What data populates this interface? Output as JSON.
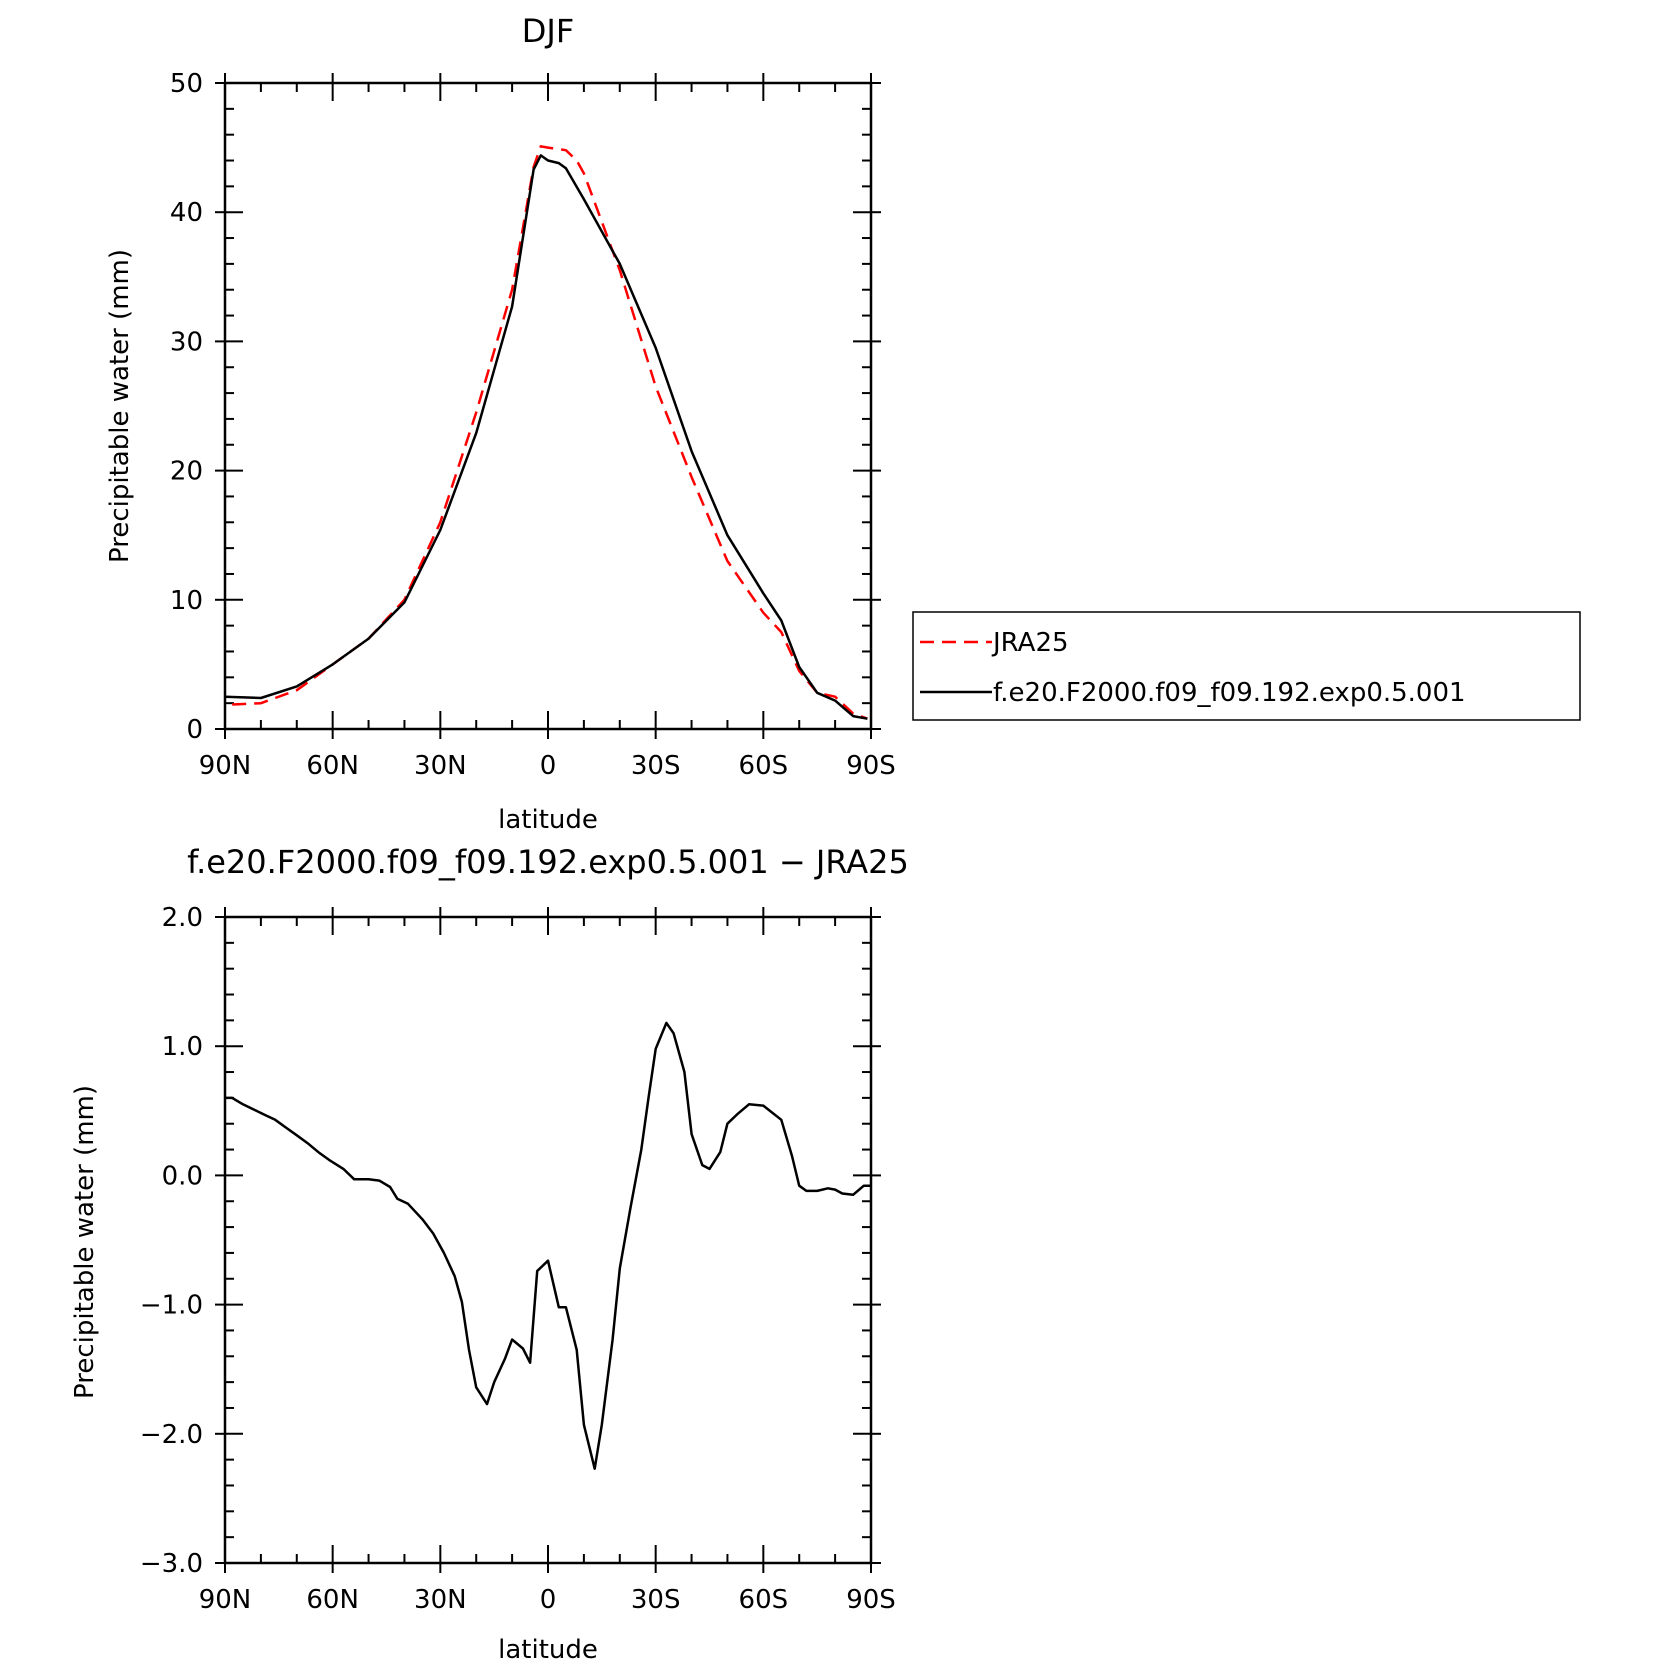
{
  "chart_data": [
    {
      "type": "line",
      "title": "DJF",
      "xlabel": "latitude",
      "ylabel": "Precipitable water (mm)",
      "xlim": [
        90,
        -90
      ],
      "ylim": [
        0,
        50
      ],
      "x_ticks": [
        90,
        60,
        30,
        0,
        -30,
        -60,
        -90
      ],
      "x_tick_labels": [
        "90N",
        "60N",
        "30N",
        "0",
        "30S",
        "60S",
        "90S"
      ],
      "y_ticks": [
        0,
        10,
        20,
        30,
        40,
        50
      ],
      "y_tick_labels": [
        "0",
        "10",
        "20",
        "30",
        "40",
        "50"
      ],
      "legend_position": "right",
      "series": [
        {
          "name": "JRA25",
          "color": "#ff0000",
          "style": "dashed",
          "x": [
            88,
            80,
            70,
            60,
            50,
            40,
            30,
            20,
            10,
            4,
            2,
            0,
            -5,
            -8,
            -10,
            -20,
            -30,
            -40,
            -50,
            -60,
            -65,
            -70,
            -75,
            -80,
            -85,
            -89
          ],
          "y": [
            1.9,
            2.0,
            3.0,
            5.0,
            7.0,
            10.0,
            16.0,
            24.5,
            34.0,
            43.5,
            45.1,
            45.0,
            44.8,
            44.0,
            43.0,
            35.5,
            26.5,
            19.5,
            13.0,
            9.0,
            7.5,
            4.5,
            2.8,
            2.5,
            1.2,
            0.8
          ]
        },
        {
          "name": "f.e20.F2000.f09_f09.192.exp0.5.001",
          "color": "#000000",
          "style": "solid",
          "x": [
            90,
            80,
            70,
            60,
            50,
            40,
            30,
            20,
            10,
            4,
            2,
            0,
            -3,
            -5,
            -10,
            -20,
            -30,
            -40,
            -50,
            -60,
            -65,
            -70,
            -75,
            -80,
            -85,
            -89
          ],
          "y": [
            2.5,
            2.4,
            3.3,
            5.0,
            7.0,
            9.8,
            15.4,
            22.9,
            32.7,
            43.3,
            44.4,
            44.0,
            43.8,
            43.4,
            41.0,
            36.0,
            29.5,
            21.5,
            15.0,
            10.5,
            8.4,
            4.8,
            2.8,
            2.2,
            1.0,
            0.8
          ]
        }
      ]
    },
    {
      "type": "line",
      "title": "f.e20.F2000.f09_f09.192.exp0.5.001 − JRA25",
      "xlabel": "latitude",
      "ylabel": "Precipitable water (mm)",
      "xlim": [
        90,
        -90
      ],
      "ylim": [
        -3.0,
        2.0
      ],
      "x_ticks": [
        90,
        60,
        30,
        0,
        -30,
        -60,
        -90
      ],
      "x_tick_labels": [
        "90N",
        "60N",
        "30N",
        "0",
        "30S",
        "60S",
        "90S"
      ],
      "y_ticks": [
        -3.0,
        -2.0,
        -1.0,
        0.0,
        1.0,
        2.0
      ],
      "y_tick_labels": [
        "−3.0",
        "−2.0",
        "−1.0",
        "0.0",
        "1.0",
        "2.0"
      ],
      "series": [
        {
          "color": "#000000",
          "style": "solid",
          "x": [
            90,
            88,
            85,
            82,
            79,
            76,
            73,
            70,
            67,
            64,
            61,
            57,
            54,
            50,
            47,
            44,
            42,
            39,
            35,
            32,
            29,
            26,
            24,
            22,
            20,
            17,
            15,
            12,
            10,
            7,
            5,
            3,
            0,
            -3,
            -5,
            -8,
            -10,
            -13,
            -15,
            -18,
            -20,
            -23,
            -26,
            -28,
            -30,
            -33,
            -35,
            -38,
            -40,
            -43,
            -45,
            -48,
            -50,
            -53,
            -56,
            -60,
            -65,
            -68,
            -70,
            -72,
            -75,
            -78,
            -80,
            -82,
            -85,
            -88,
            -90
          ],
          "y": [
            0.6,
            0.6,
            0.55,
            0.51,
            0.47,
            0.43,
            0.37,
            0.31,
            0.25,
            0.18,
            0.12,
            0.05,
            -0.03,
            -0.03,
            -0.04,
            -0.09,
            -0.18,
            -0.22,
            -0.34,
            -0.45,
            -0.6,
            -0.78,
            -0.98,
            -1.35,
            -1.64,
            -1.77,
            -1.6,
            -1.42,
            -1.27,
            -1.34,
            -1.45,
            -0.74,
            -0.66,
            -1.02,
            -1.02,
            -1.35,
            -1.93,
            -2.27,
            -1.93,
            -1.27,
            -0.72,
            -0.25,
            0.2,
            0.6,
            0.98,
            1.18,
            1.1,
            0.8,
            0.32,
            0.08,
            0.05,
            0.18,
            0.4,
            0.48,
            0.55,
            0.54,
            0.43,
            0.15,
            -0.08,
            -0.12,
            -0.12,
            -0.1,
            -0.11,
            -0.14,
            -0.15,
            -0.08,
            -0.08
          ]
        }
      ]
    }
  ]
}
